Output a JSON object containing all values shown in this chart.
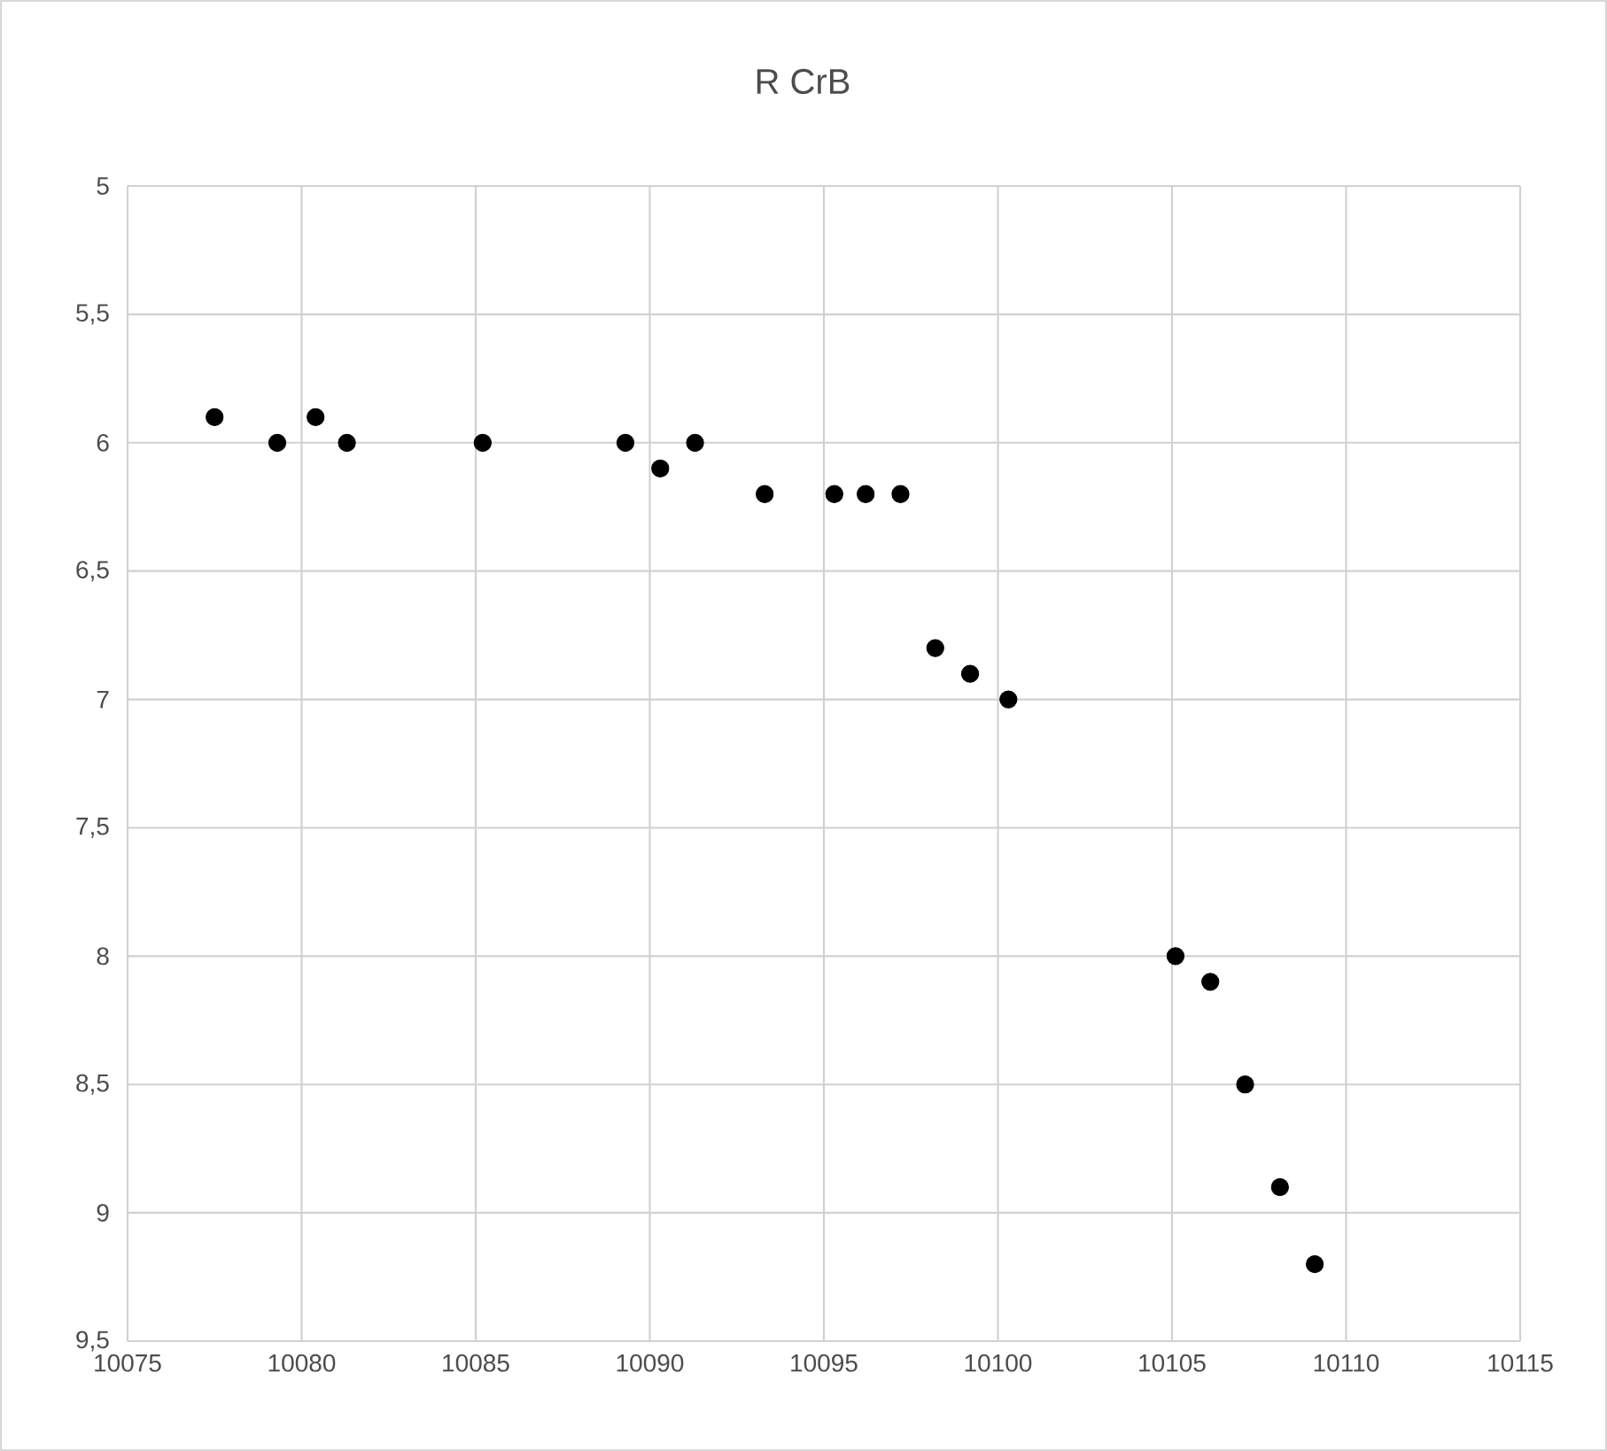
{
  "chart_data": {
    "type": "scatter",
    "title": "R CrB",
    "x": [
      10077.5,
      10079.3,
      10080.4,
      10081.3,
      10085.2,
      10089.3,
      10090.3,
      10091.3,
      10093.3,
      10095.3,
      10096.2,
      10097.2,
      10098.2,
      10099.2,
      10100.3,
      10105.1,
      10106.1,
      10107.1,
      10108.1,
      10109.1
    ],
    "series": [
      {
        "color": "#000000",
        "values": [
          5.9,
          6.0,
          5.9,
          6.0,
          6.0,
          6.0,
          6.1,
          6.0,
          6.2,
          6.2,
          6.2,
          6.2,
          6.8,
          6.9,
          7.0,
          8.0,
          8.1,
          8.5,
          8.9,
          9.2
        ]
      }
    ],
    "xlim": [
      10075,
      10115
    ],
    "xticks": [
      10075,
      10080,
      10085,
      10090,
      10095,
      10100,
      10105,
      10110,
      10115
    ],
    "ylim": [
      9.5,
      5
    ],
    "yticks": [
      5,
      {
        "value": 5.5,
        "label": "5,5"
      },
      6,
      {
        "value": 6.5,
        "label": "6,5"
      },
      7,
      {
        "value": 7.5,
        "label": "7,5"
      },
      8,
      {
        "value": 8.5,
        "label": "8,5"
      },
      9,
      {
        "value": 9.5,
        "label": "9,5"
      }
    ],
    "grid": true,
    "marker": "circle"
  }
}
